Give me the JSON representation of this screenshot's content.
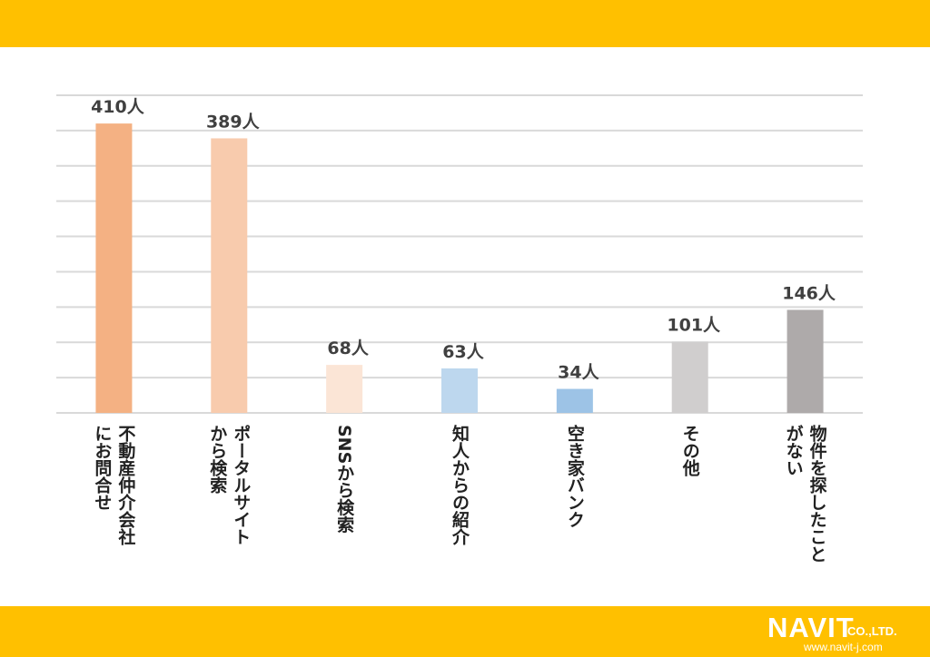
{
  "chart_data": {
    "type": "bar",
    "unit_suffix": "人",
    "categories": [
      [
        "不動産仲介会社",
        "にお問合せ"
      ],
      [
        "ポータルサイト",
        "から検索"
      ],
      [
        "SNSから検索"
      ],
      [
        "知人からの紹介"
      ],
      [
        "空き家バンク"
      ],
      [
        "その他"
      ],
      [
        "物件を探したこと",
        "がない"
      ]
    ],
    "values": [
      410,
      389,
      68,
      63,
      34,
      101,
      146
    ],
    "value_labels": [
      "410人",
      "389人",
      "68人",
      "63人",
      "34人",
      "101人",
      "146人"
    ],
    "bar_colors": [
      "#F4B183",
      "#F8CBAD",
      "#FBE5D6",
      "#BDD7EE",
      "#9DC3E6",
      "#D0CECE",
      "#AEAAAA"
    ],
    "ylim": [
      0,
      450
    ],
    "grid": true,
    "label_orientation": "vertical"
  },
  "frame": {
    "band_color": "#FFC000"
  },
  "logo": {
    "main": "NAVIT",
    "company_suffix": "CO.,LTD.",
    "url": "www.navit-j.com"
  }
}
